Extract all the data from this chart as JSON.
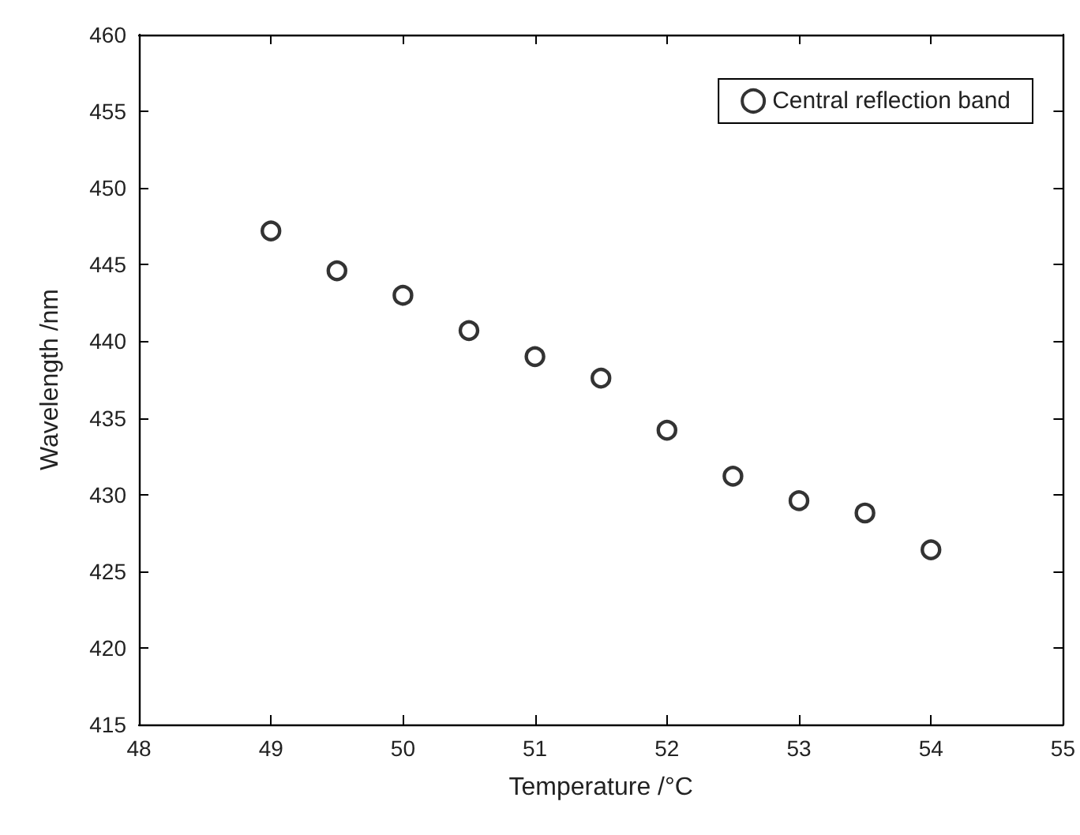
{
  "chart_data": {
    "type": "scatter",
    "xlabel": "Temperature /°C",
    "ylabel": "Wavelength /nm",
    "x": [
      49,
      49.5,
      50,
      50.5,
      51,
      51.5,
      52,
      52.5,
      53,
      53.5,
      54
    ],
    "series": [
      {
        "name": "Central reflection band",
        "color": "#000000",
        "values": [
          447.2,
          444.6,
          443.0,
          440.7,
          439.0,
          437.6,
          434.2,
          431.2,
          429.6,
          428.8,
          426.4
        ]
      }
    ],
    "xlim": [
      48,
      55
    ],
    "xticks": [
      48,
      49,
      50,
      51,
      52,
      53,
      54,
      55
    ],
    "ylim": [
      415,
      460
    ],
    "yticks": [
      415,
      420,
      425,
      430,
      435,
      440,
      445,
      450,
      455,
      460
    ],
    "grid": false,
    "legend": "top right",
    "marker": "circle"
  }
}
